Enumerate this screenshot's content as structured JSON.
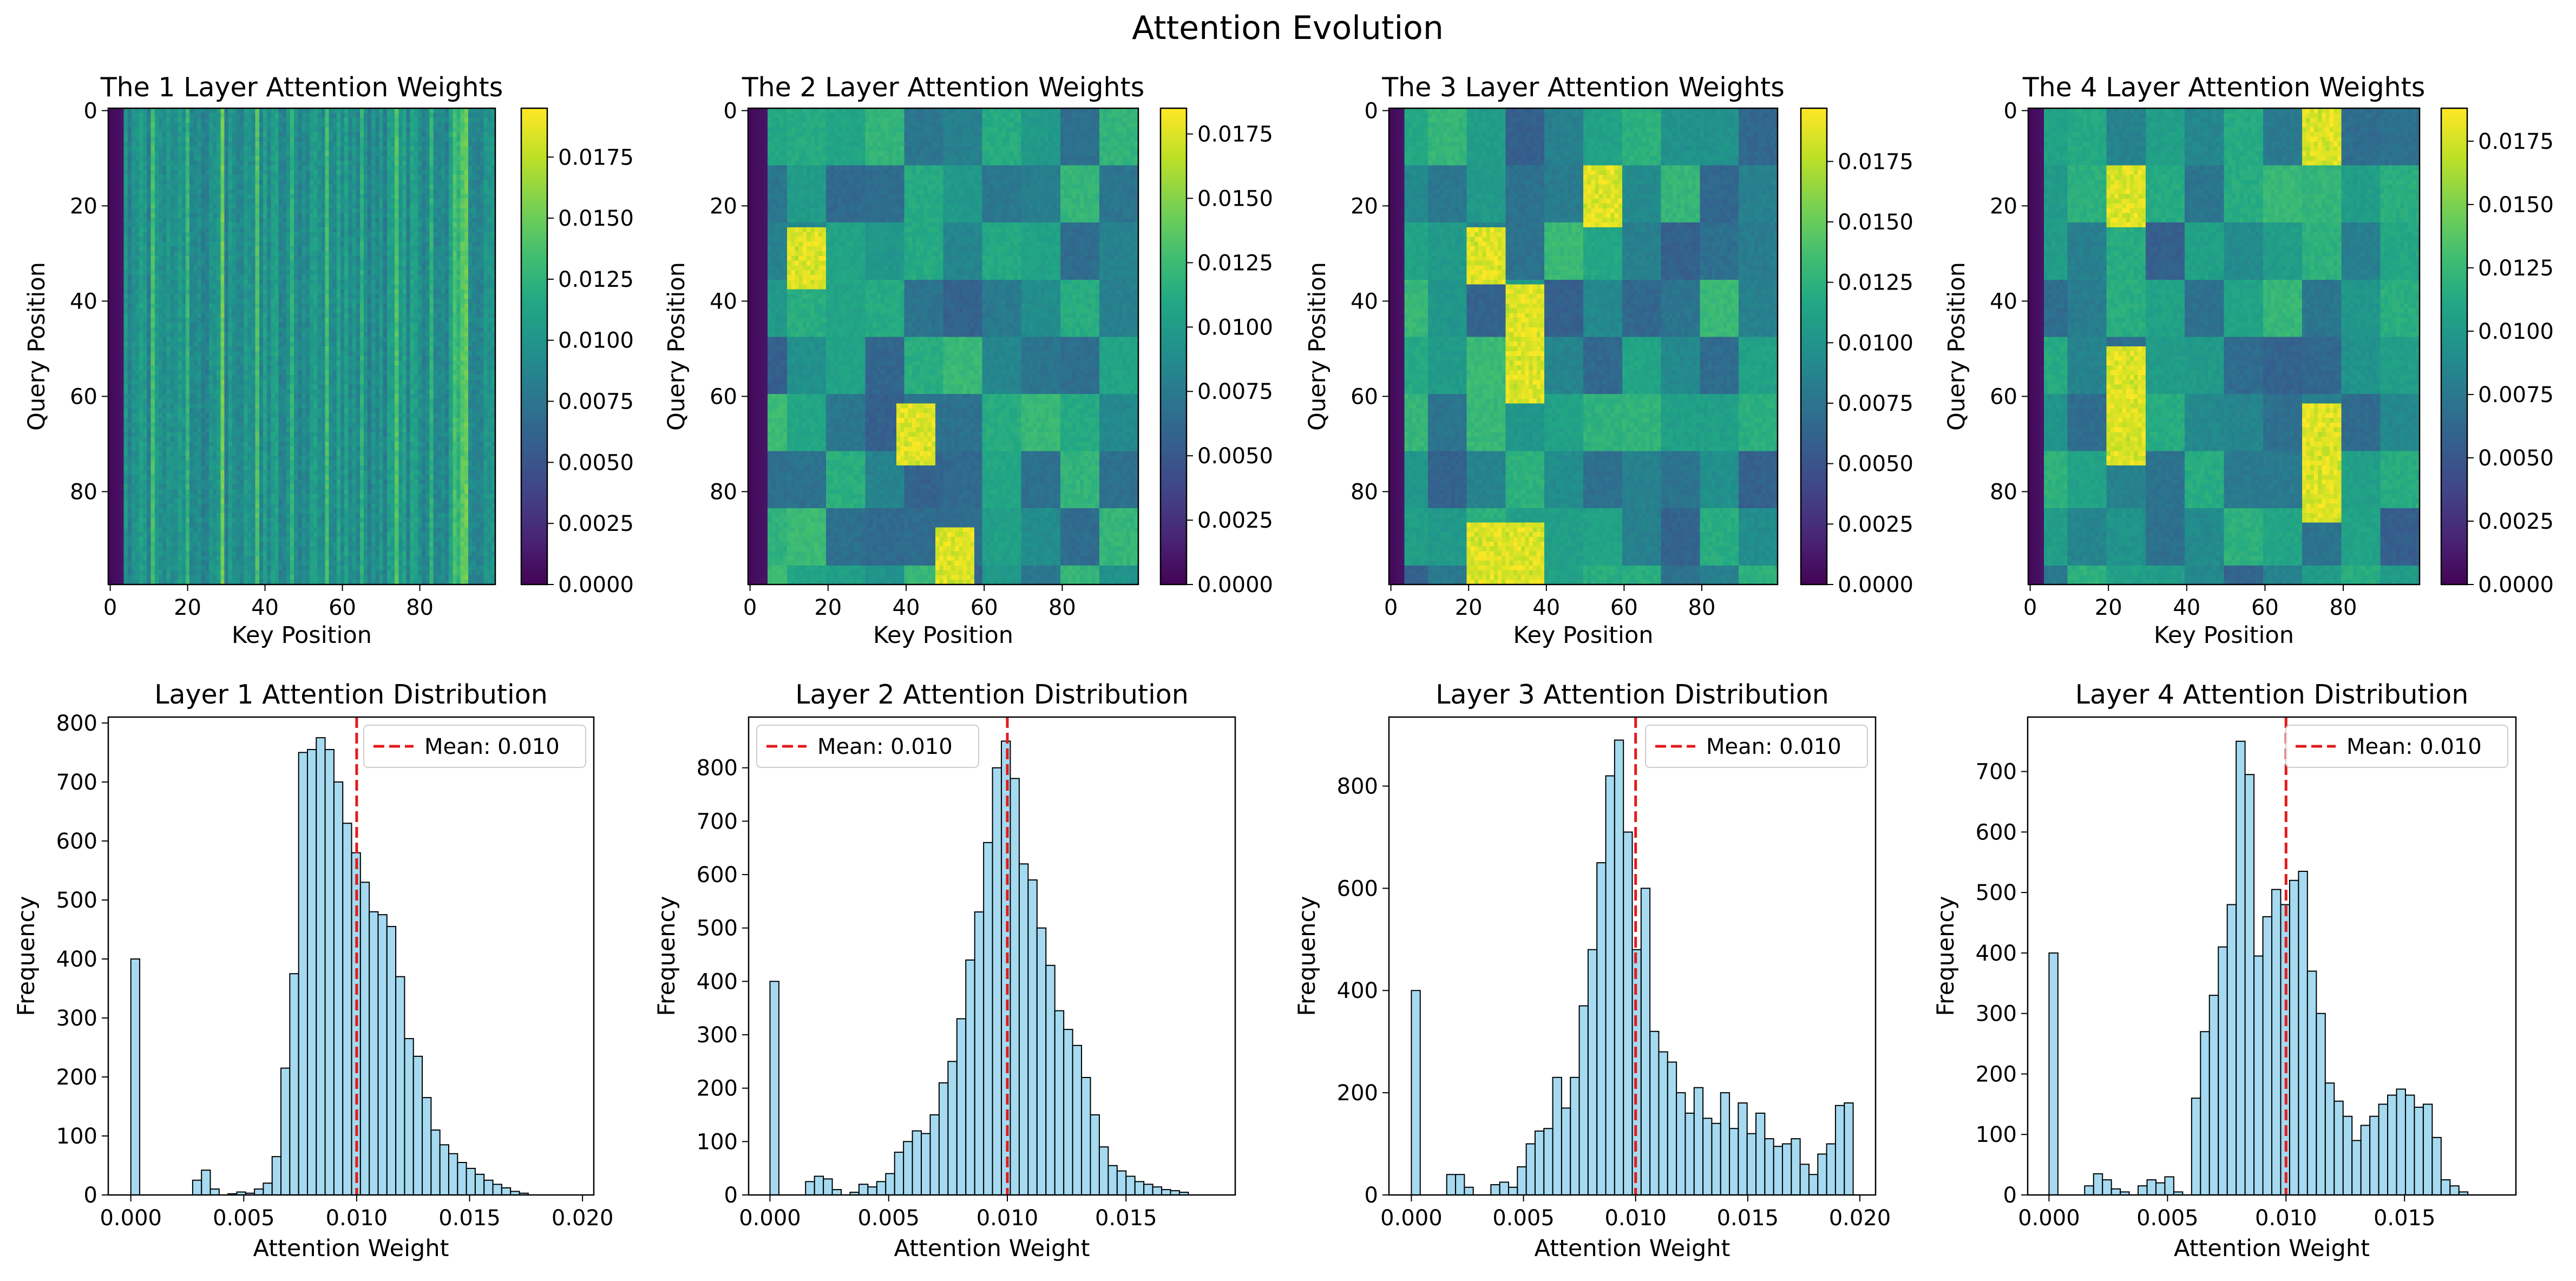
{
  "figure": {
    "title": "Attention Evolution"
  },
  "colors": {
    "hist_fill": "#87ceeb",
    "hist_edge": "#000000",
    "mean_line": "#e31a1c",
    "colormap": "viridis"
  },
  "chart_data": [
    {
      "type": "heatmap",
      "title": "The 1 Layer Attention Weights",
      "xlabel": "Key Position",
      "ylabel": "Query Position",
      "rows": 100,
      "cols": 100,
      "xticks": [
        0,
        20,
        40,
        60,
        80
      ],
      "yticks": [
        0,
        20,
        40,
        60,
        80
      ],
      "colorbar": {
        "min": 0.0,
        "max": 0.0195,
        "ticks": [
          "0.0000",
          "0.0025",
          "0.0050",
          "0.0075",
          "0.0100",
          "0.0125",
          "0.0150",
          "0.0175"
        ]
      },
      "pattern": {
        "kind": "columns",
        "dark_cols": 4,
        "block_rows": 100,
        "block_cols": 100,
        "highlights": []
      }
    },
    {
      "type": "heatmap",
      "title": "The 2 Layer Attention Weights",
      "xlabel": "Key Position",
      "ylabel": "Query Position",
      "rows": 100,
      "cols": 100,
      "xticks": [
        0,
        20,
        40,
        60,
        80
      ],
      "yticks": [
        0,
        20,
        40,
        60,
        80
      ],
      "colorbar": {
        "min": 0.0,
        "max": 0.0185,
        "ticks": [
          "0.0000",
          "0.0025",
          "0.0050",
          "0.0075",
          "0.0100",
          "0.0125",
          "0.0150",
          "0.0175"
        ]
      },
      "pattern": {
        "kind": "blocks",
        "dark_cols": 5,
        "block_rows": 12,
        "block_cols": 10,
        "highlights": [
          [
            25,
            38,
            10,
            20
          ],
          [
            62,
            75,
            38,
            48
          ],
          [
            88,
            100,
            48,
            58
          ]
        ]
      }
    },
    {
      "type": "heatmap",
      "title": "The 3 Layer Attention Weights",
      "xlabel": "Key Position",
      "ylabel": "Query Position",
      "rows": 100,
      "cols": 100,
      "xticks": [
        0,
        20,
        40,
        60,
        80
      ],
      "yticks": [
        0,
        20,
        40,
        60,
        80
      ],
      "colorbar": {
        "min": 0.0,
        "max": 0.0197,
        "ticks": [
          "0.0000",
          "0.0025",
          "0.0050",
          "0.0075",
          "0.0100",
          "0.0125",
          "0.0150",
          "0.0175"
        ]
      },
      "pattern": {
        "kind": "blocks",
        "dark_cols": 4,
        "block_rows": 12,
        "block_cols": 10,
        "highlights": [
          [
            12,
            25,
            50,
            60
          ],
          [
            25,
            37,
            20,
            30
          ],
          [
            37,
            62,
            30,
            40
          ],
          [
            87,
            100,
            20,
            40
          ]
        ]
      }
    },
    {
      "type": "heatmap",
      "title": "The 4 Layer Attention Weights",
      "xlabel": "Key Position",
      "ylabel": "Query Position",
      "rows": 100,
      "cols": 100,
      "xticks": [
        0,
        20,
        40,
        60,
        80
      ],
      "yticks": [
        0,
        20,
        40,
        60,
        80
      ],
      "colorbar": {
        "min": 0.0,
        "max": 0.0188,
        "ticks": [
          "0.0000",
          "0.0025",
          "0.0050",
          "0.0075",
          "0.0100",
          "0.0125",
          "0.0150",
          "0.0175"
        ]
      },
      "pattern": {
        "kind": "blocks",
        "dark_cols": 4,
        "block_rows": 12,
        "block_cols": 10,
        "highlights": [
          [
            12,
            25,
            20,
            30
          ],
          [
            0,
            12,
            70,
            80
          ],
          [
            62,
            87,
            70,
            80
          ],
          [
            50,
            75,
            20,
            30
          ]
        ]
      }
    },
    {
      "type": "bar",
      "subtype": "histogram",
      "title": "Layer 1 Attention Distribution",
      "xlabel": "Attention Weight",
      "ylabel": "Frequency",
      "bin_start": 0.0,
      "bin_width": 0.000391,
      "counts": [
        400,
        0,
        0,
        0,
        0,
        0,
        0,
        25,
        42,
        10,
        0,
        2,
        5,
        3,
        10,
        20,
        65,
        215,
        375,
        750,
        755,
        775,
        755,
        700,
        630,
        580,
        530,
        480,
        475,
        455,
        370,
        265,
        235,
        165,
        110,
        85,
        70,
        55,
        45,
        35,
        25,
        18,
        12,
        6,
        3,
        0,
        0,
        0,
        0,
        0
      ],
      "xlim": [
        -0.001,
        0.0205
      ],
      "ylim": [
        0,
        810
      ],
      "xticks": [
        0.0,
        0.005,
        0.01,
        0.015,
        0.02
      ],
      "xtick_labels": [
        "0.000",
        "0.005",
        "0.010",
        "0.015",
        "0.020"
      ],
      "yticks": [
        0,
        100,
        200,
        300,
        400,
        500,
        600,
        700,
        800
      ],
      "mean": 0.01,
      "legend": "Mean: 0.010",
      "legend_position": "top-right"
    },
    {
      "type": "bar",
      "subtype": "histogram",
      "title": "Layer 2 Attention Distribution",
      "xlabel": "Attention Weight",
      "ylabel": "Frequency",
      "bin_start": 0.0,
      "bin_width": 0.000375,
      "counts": [
        400,
        0,
        0,
        0,
        25,
        35,
        30,
        10,
        0,
        5,
        20,
        15,
        25,
        40,
        80,
        100,
        120,
        115,
        150,
        210,
        250,
        330,
        440,
        530,
        660,
        800,
        850,
        780,
        620,
        590,
        500,
        430,
        345,
        310,
        280,
        220,
        150,
        90,
        55,
        45,
        35,
        25,
        20,
        15,
        10,
        8,
        5,
        0,
        0,
        0
      ],
      "xlim": [
        -0.0009,
        0.0196
      ],
      "ylim": [
        0,
        895
      ],
      "xticks": [
        0.0,
        0.005,
        0.01,
        0.015
      ],
      "xtick_labels": [
        "0.000",
        "0.005",
        "0.010",
        "0.015"
      ],
      "yticks": [
        0,
        100,
        200,
        300,
        400,
        500,
        600,
        700,
        800
      ],
      "mean": 0.01,
      "legend": "Mean: 0.010",
      "legend_position": "top-left"
    },
    {
      "type": "bar",
      "subtype": "histogram",
      "title": "Layer 3 Attention Distribution",
      "xlabel": "Attention Weight",
      "ylabel": "Frequency",
      "bin_start": 0.0,
      "bin_width": 0.000394,
      "counts": [
        400,
        0,
        0,
        0,
        40,
        40,
        15,
        0,
        0,
        20,
        25,
        15,
        55,
        100,
        125,
        130,
        230,
        170,
        230,
        370,
        480,
        650,
        820,
        890,
        710,
        480,
        600,
        320,
        280,
        260,
        200,
        160,
        210,
        150,
        140,
        200,
        130,
        180,
        120,
        160,
        110,
        95,
        100,
        110,
        60,
        40,
        80,
        100,
        175,
        180
      ],
      "xlim": [
        -0.001,
        0.0207
      ],
      "ylim": [
        0,
        935
      ],
      "xticks": [
        0.0,
        0.005,
        0.01,
        0.015,
        0.02
      ],
      "xtick_labels": [
        "0.000",
        "0.005",
        "0.010",
        "0.015",
        "0.020"
      ],
      "yticks": [
        0,
        200,
        400,
        600,
        800
      ],
      "mean": 0.01,
      "legend": "Mean: 0.010",
      "legend_position": "top-right"
    },
    {
      "type": "bar",
      "subtype": "histogram",
      "title": "Layer 4 Attention Distribution",
      "xlabel": "Attention Weight",
      "ylabel": "Frequency",
      "bin_start": 0.0,
      "bin_width": 0.000376,
      "counts": [
        400,
        0,
        0,
        0,
        15,
        35,
        25,
        10,
        5,
        0,
        15,
        25,
        20,
        30,
        5,
        0,
        160,
        270,
        330,
        410,
        480,
        750,
        695,
        395,
        460,
        505,
        480,
        520,
        535,
        370,
        300,
        185,
        155,
        130,
        90,
        115,
        130,
        150,
        165,
        175,
        165,
        145,
        150,
        95,
        25,
        15,
        5,
        0,
        0,
        0
      ],
      "xlim": [
        -0.0009,
        0.0197
      ],
      "ylim": [
        0,
        790
      ],
      "xticks": [
        0.0,
        0.005,
        0.01,
        0.015
      ],
      "xtick_labels": [
        "0.000",
        "0.005",
        "0.010",
        "0.015"
      ],
      "yticks": [
        0,
        100,
        200,
        300,
        400,
        500,
        600,
        700
      ],
      "mean": 0.01,
      "legend": "Mean: 0.010",
      "legend_position": "top-right"
    }
  ]
}
